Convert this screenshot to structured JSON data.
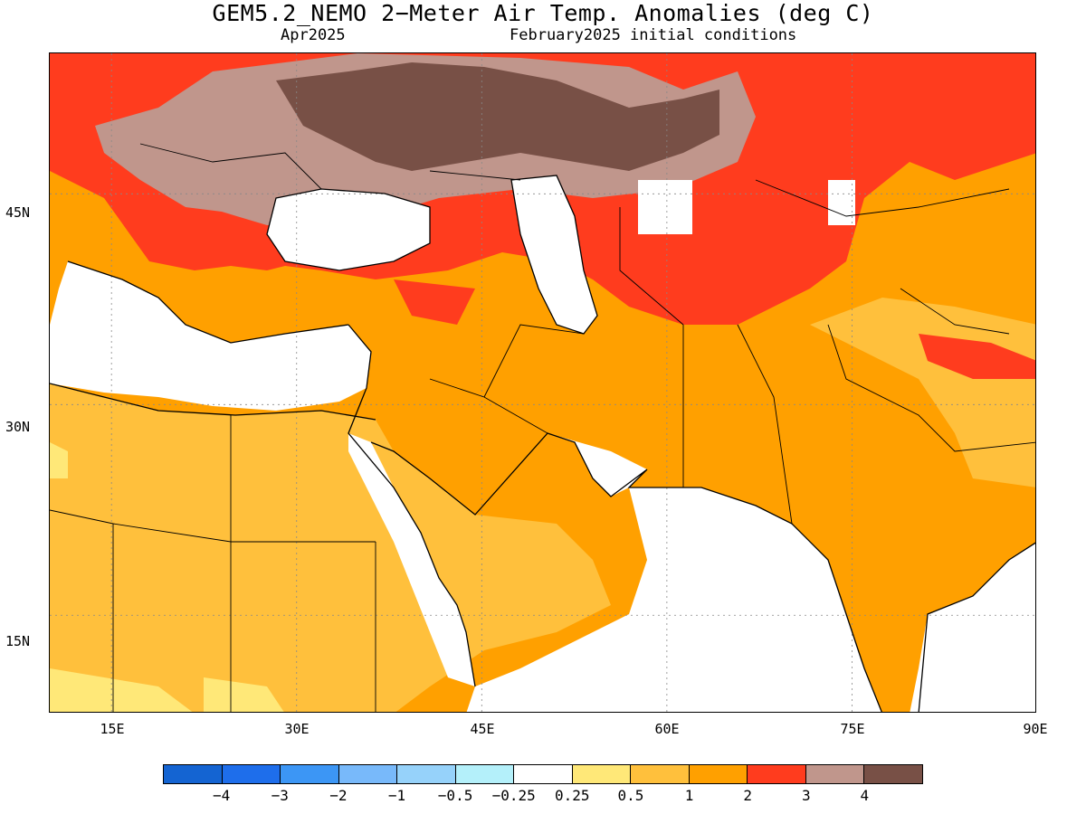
{
  "title": "GEM5.2_NEMO 2−Meter Air Temp. Anomalies (deg C)",
  "subtitle_left": "Apr2025",
  "subtitle_right": "February2025 initial conditions",
  "lat_labels": [
    "45N",
    "30N",
    "15N"
  ],
  "lon_labels": [
    "15E",
    "30E",
    "45E",
    "60E",
    "75E",
    "90E"
  ],
  "colorbar": {
    "colors": [
      "#1464d2",
      "#1e6eeb",
      "#3c96f5",
      "#78b9fa",
      "#96d2fa",
      "#b4f0fa",
      "#ffffff",
      "#ffe878",
      "#ffc03c",
      "#ffa000",
      "#ff3c1e",
      "#c0968c",
      "#785046"
    ],
    "labels": [
      "−4",
      "−3",
      "−2",
      "−1",
      "−0.5",
      "−0.25",
      "0.25",
      "0.5",
      "1",
      "2",
      "3",
      "4"
    ]
  },
  "map": {
    "lon_range": [
      10,
      90
    ],
    "lat_range": [
      8,
      55
    ],
    "grid_lons": [
      15,
      30,
      45,
      60,
      75
    ],
    "grid_lats": [
      45,
      30,
      15
    ],
    "colors": {
      "ocean": "#ffffff",
      "anom_0_5_1": "#ffc03c",
      "anom_1_2": "#ffa000",
      "anom_2_3": "#ff3c1e",
      "anom_3_4": "#c0968c",
      "anom_gt4": "#785046",
      "anom_0_25_0_5": "#ffe878"
    }
  }
}
